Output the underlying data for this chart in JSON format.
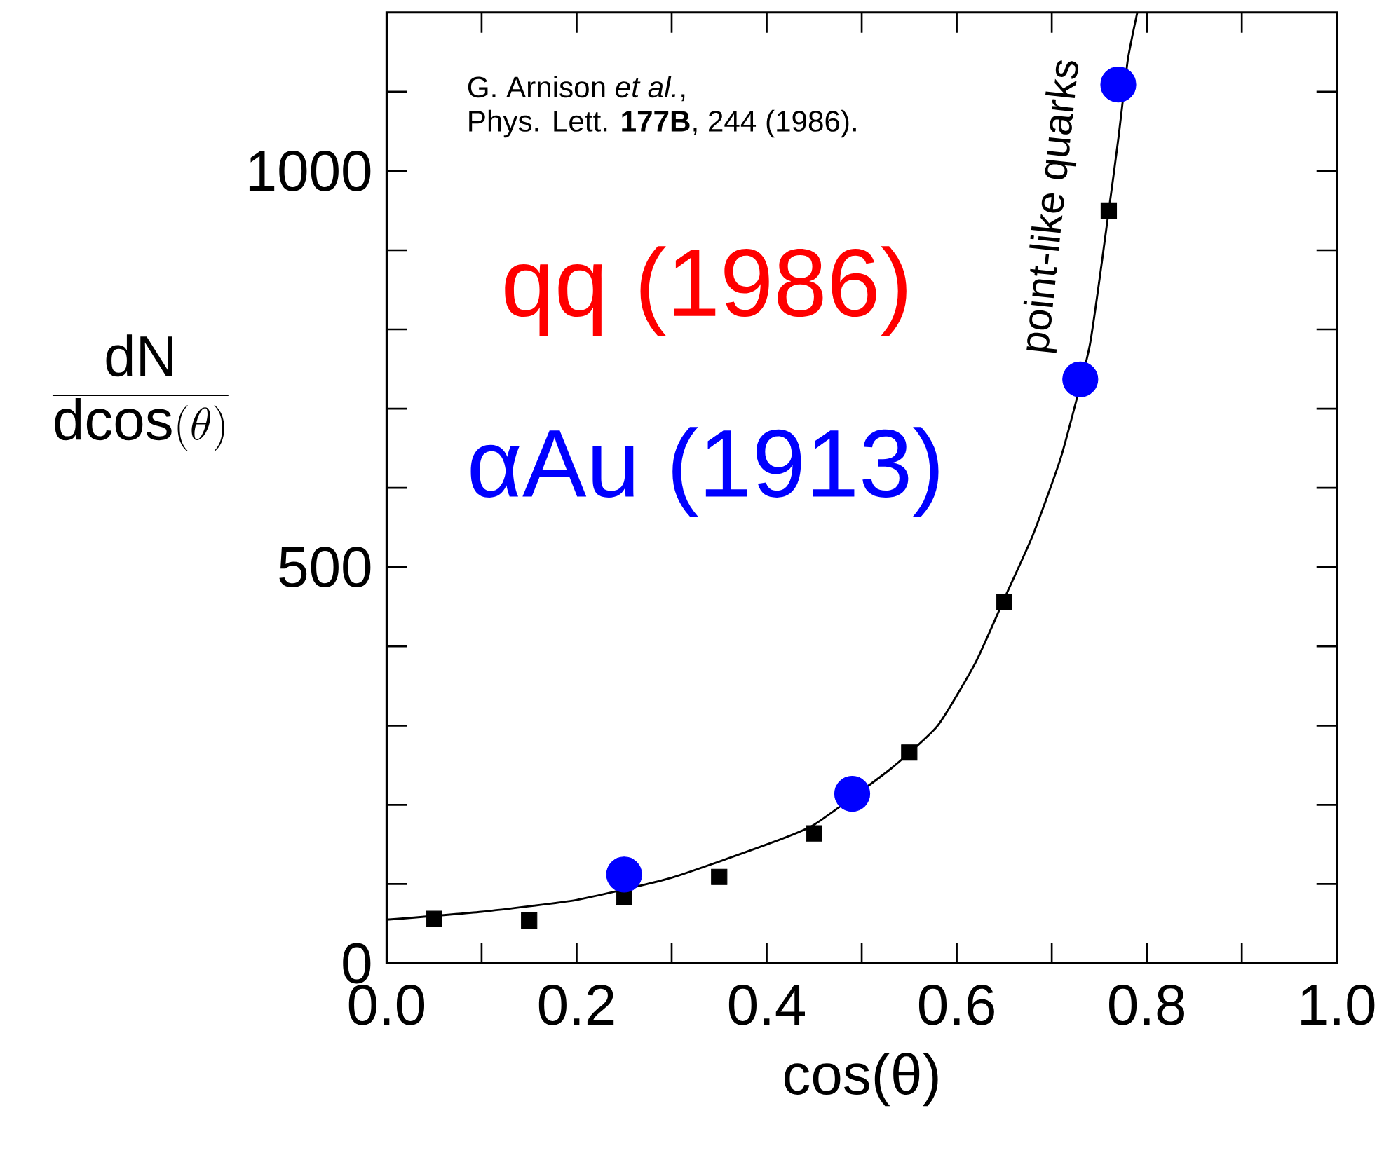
{
  "chart_data": {
    "type": "scatter",
    "xlabel": "cos(θ)",
    "ylabel": "\\frac{\\mathrm{dN}}{\\mathrm{dcos}(\\theta)}",
    "xlim": [
      0,
      1.0
    ],
    "ylim": [
      0,
      1200
    ],
    "xticks": [
      {
        "value": 0,
        "label": "0.0"
      },
      {
        "value": 0.1,
        "label": null
      },
      {
        "value": 0.2,
        "label": "0.2"
      },
      {
        "value": 0.3,
        "label": null
      },
      {
        "value": 0.4,
        "label": "0.4"
      },
      {
        "value": 0.5,
        "label": null
      },
      {
        "value": 0.6,
        "label": "0.6"
      },
      {
        "value": 0.7,
        "label": null
      },
      {
        "value": 0.8,
        "label": "0.8"
      },
      {
        "value": 0.9,
        "label": null
      },
      {
        "value": 1.0,
        "label": "1.0"
      }
    ],
    "yticks": [
      0,
      {
        "value": 100,
        "label": null
      },
      {
        "value": 200,
        "label": null
      },
      {
        "value": 300,
        "label": null
      },
      {
        "value": 400,
        "label": null
      },
      500,
      {
        "value": 600,
        "label": null
      },
      {
        "value": 700,
        "label": null
      },
      {
        "value": 800,
        "label": null
      },
      {
        "value": 900,
        "label": null
      },
      1000,
      {
        "value": 1100,
        "label": null
      }
    ],
    "grid": false,
    "series": [
      {
        "type": "line",
        "color": "#000000",
        "marker": "none",
        "x": [
          0,
          0.1,
          0.2,
          0.3,
          0.4,
          0.45,
          0.53,
          0.58,
          0.62,
          0.65,
          0.68,
          0.71,
          0.74,
          0.76,
          0.77,
          0.78,
          0.79
        ],
        "values": [
          55,
          65,
          80,
          108,
          150,
          175,
          245,
          300,
          380,
          460,
          540,
          640,
          780,
          950,
          1040,
          1140,
          1200
        ]
      },
      {
        "type": "scatter",
        "color": "#000000",
        "marker": "square",
        "x": [
          0.05,
          0.15,
          0.25,
          0.35,
          0.45,
          0.55,
          0.65,
          0.76
        ],
        "values": [
          56,
          54,
          84,
          109,
          164,
          266,
          456,
          950
        ]
      },
      {
        "type": "scatter",
        "color": "#0000ff",
        "marker": "circle",
        "x": [
          0.25,
          0.49,
          0.73,
          0.77
        ],
        "values": [
          112,
          214,
          737,
          1109
        ]
      }
    ],
    "annotations": [
      "G. Arnison *et al.*,",
      "Phys. Lett. **177B**, 244 (1986).",
      "qq (1986)",
      "αAu (1913)",
      "point-like quarks"
    ]
  }
}
